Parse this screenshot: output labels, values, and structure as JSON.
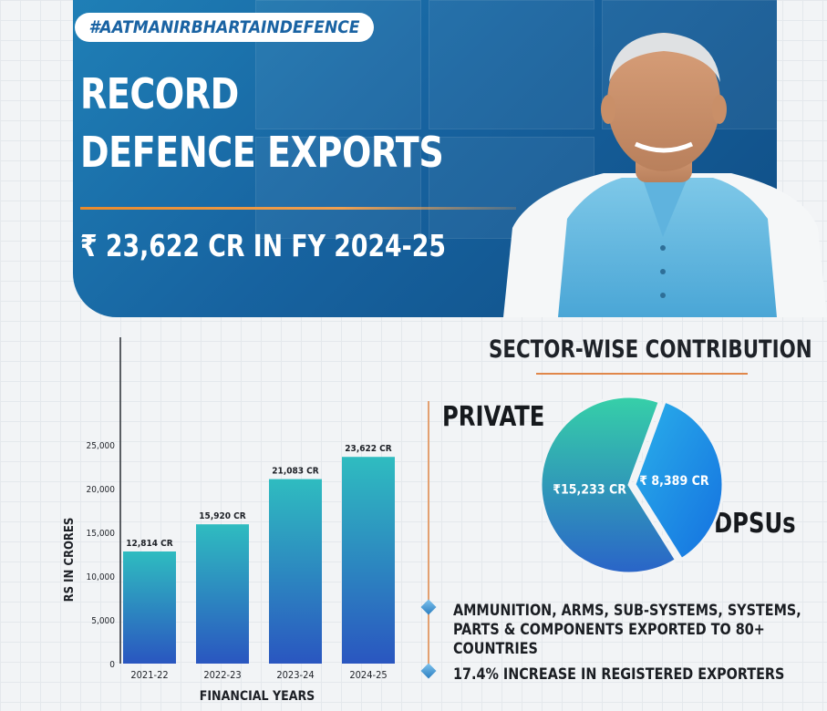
{
  "banner": {
    "hashtag": "#AATMANIRBHARTAINDEFENCE",
    "title_line1": "RECORD",
    "title_line2": "DEFENCE EXPORTS",
    "subtitle": "₹ 23,622 CR IN FY 2024-25",
    "colors": {
      "banner_top": "#1f7fb6",
      "banner_bottom": "#0f4d84",
      "accent": "#e98a2c"
    }
  },
  "chart_data": [
    {
      "type": "bar",
      "categories": [
        "2021-22",
        "2022-23",
        "2023-24",
        "2024-25"
      ],
      "values": [
        12814,
        15920,
        21083,
        23622
      ],
      "data_labels": [
        "12,814 CR",
        "15,920 CR",
        "21,083 CR",
        "23,622 CR"
      ],
      "xlabel": "FINANCIAL YEARS",
      "ylabel": "RS IN CRORES",
      "ylim": [
        0,
        25000
      ],
      "yticks": [
        0,
        5000,
        10000,
        15000,
        20000,
        25000
      ],
      "ytick_labels": [
        "0",
        "5,000",
        "10,000",
        "15,000",
        "20,000",
        "25,000"
      ],
      "bar_color_top": "#2fbcc0",
      "bar_color_bottom": "#2a56c0",
      "grid": false
    },
    {
      "type": "pie",
      "title": "SECTOR-WISE CONTRIBUTION",
      "labels": [
        "PRIVATE",
        "DPSUs"
      ],
      "values": [
        15233,
        8389
      ],
      "slice_labels": [
        "₹15,233 CR",
        "₹ 8,389 CR"
      ],
      "colors": [
        "#2fc4a8",
        "#1e8ee8"
      ]
    }
  ],
  "bullets": [
    {
      "text": "AMMUNITION, ARMS, SUB-SYSTEMS, SYSTEMS, PARTS & COMPONENTS EXPORTED TO 80+ COUNTRIES"
    },
    {
      "text": "17.4% INCREASE IN REGISTERED EXPORTERS"
    }
  ]
}
